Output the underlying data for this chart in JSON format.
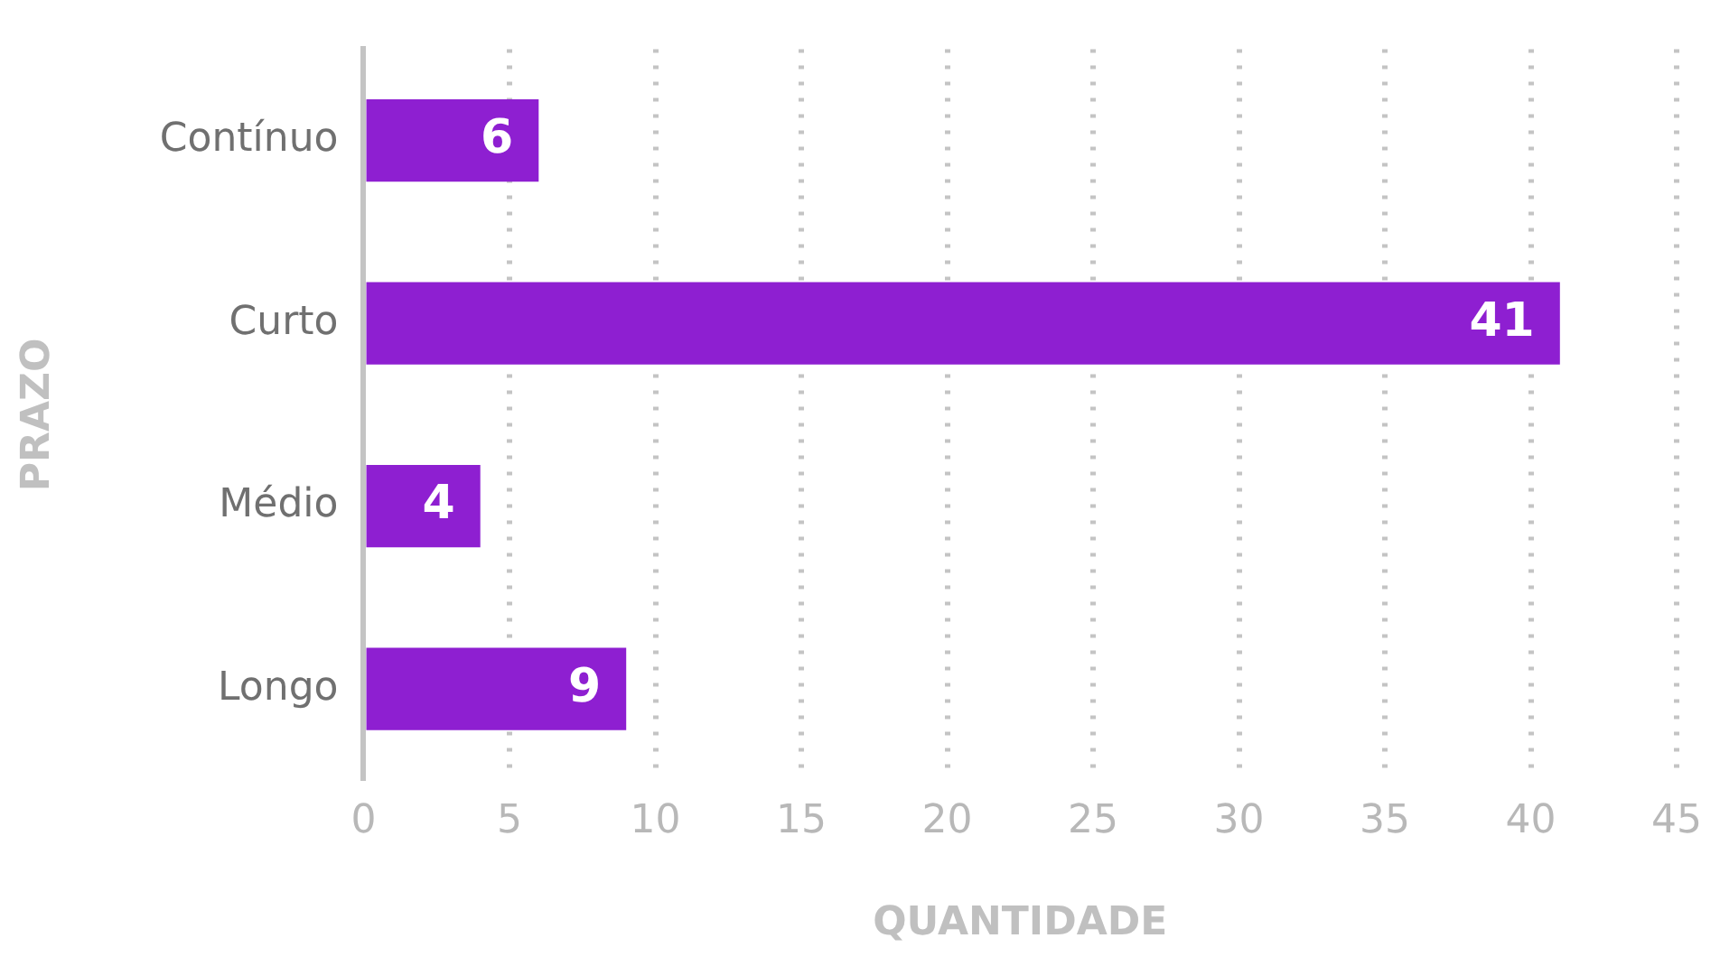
{
  "chart_data": {
    "type": "bar",
    "orientation": "horizontal",
    "xlabel": "QUANTIDADE",
    "ylabel": "PRAZO",
    "categories": [
      "Contínuo",
      "Curto",
      "Médio",
      "Longo"
    ],
    "values": [
      6,
      41,
      4,
      9
    ],
    "color": "#8e1fd1",
    "xlim": [
      0,
      45
    ],
    "xticks": [
      0,
      5,
      10,
      15,
      20,
      25,
      30,
      35,
      40,
      45
    ],
    "grid": "x",
    "data_labels": true,
    "legend": false
  }
}
